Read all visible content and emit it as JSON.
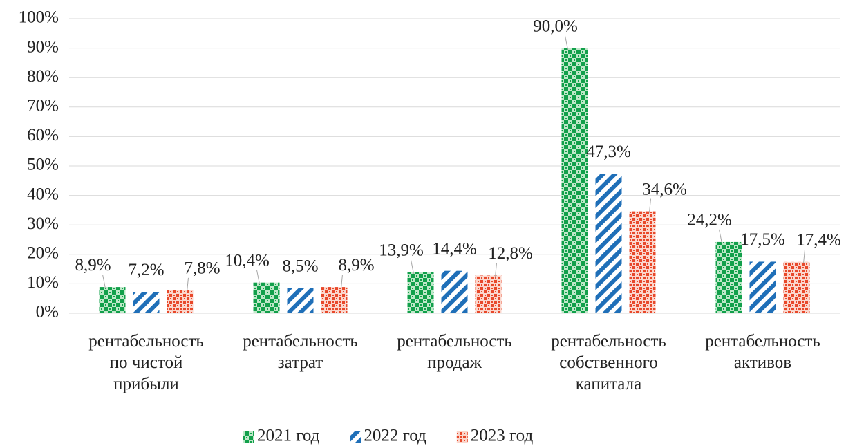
{
  "chart_data": {
    "type": "bar",
    "categories": [
      "рентабельность\nпо чистой\nприбыли",
      "рентабельность\nзатрат",
      "рентабельность\nпродаж",
      "рентабельность\nсобственного\nкапитала",
      "рентабельность\nактивов"
    ],
    "series": [
      {
        "name": "2021 год",
        "color": "#12a04b",
        "values": [
          8.9,
          10.4,
          13.9,
          90.0,
          24.2
        ],
        "value_labels": [
          "8,9%",
          "10,4%",
          "13,9%",
          "90,0%",
          "24,2%"
        ]
      },
      {
        "name": "2022 год",
        "color": "#1f6fb8",
        "values": [
          7.2,
          8.5,
          14.4,
          47.3,
          17.5
        ],
        "value_labels": [
          "7,2%",
          "8,5%",
          "14,4%",
          "47,3%",
          "17,5%"
        ]
      },
      {
        "name": "2023 год",
        "color": "#e8482a",
        "values": [
          7.8,
          8.9,
          12.8,
          34.6,
          17.4
        ],
        "value_labels": [
          "7,8%",
          "8,9%",
          "12,8%",
          "34,6%",
          "17,4%"
        ]
      }
    ],
    "ylim": [
      0,
      100
    ],
    "yticks": [
      {
        "value": 0,
        "label": "0%"
      },
      {
        "value": 10,
        "label": "10%"
      },
      {
        "value": 20,
        "label": "20%"
      },
      {
        "value": 30,
        "label": "30%"
      },
      {
        "value": 40,
        "label": "40%"
      },
      {
        "value": 50,
        "label": "50%"
      },
      {
        "value": 60,
        "label": "60%"
      },
      {
        "value": 70,
        "label": "70%"
      },
      {
        "value": 80,
        "label": "80%"
      },
      {
        "value": 90,
        "label": "90%"
      },
      {
        "value": 100,
        "label": "100%"
      }
    ],
    "grid": true,
    "legend": "bottom"
  }
}
